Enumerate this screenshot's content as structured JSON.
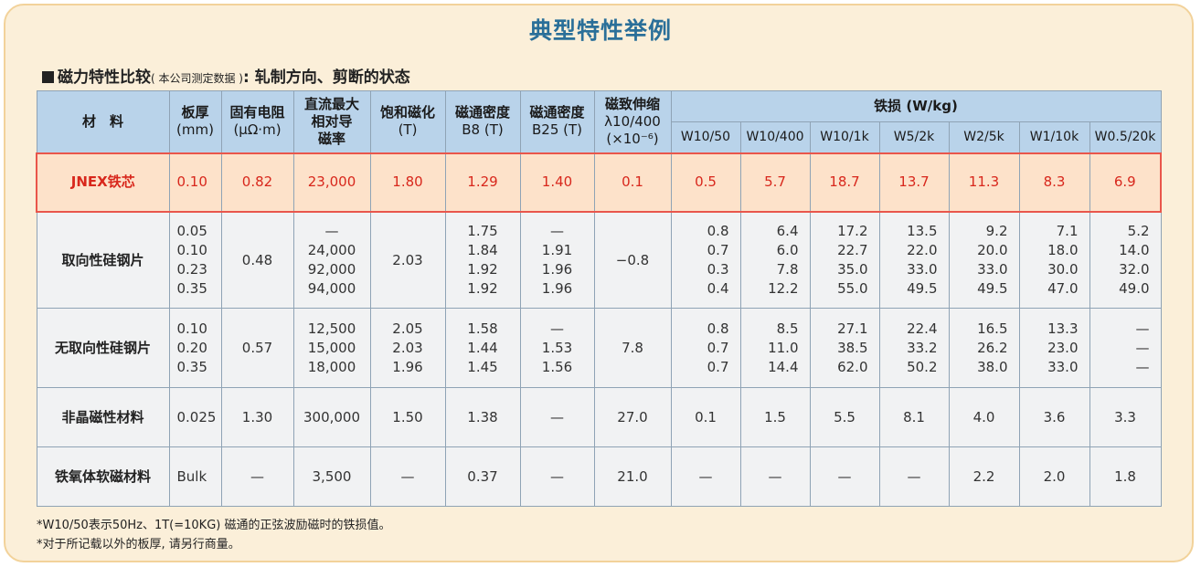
{
  "title": "典型特性举例",
  "subtitle": {
    "main": "磁力特性比较",
    "paren": "( 本公司测定数据 )",
    "rest": ": 轧制方向、剪断的状态"
  },
  "headers": {
    "material": "材　料",
    "thickness": [
      "板厚",
      "(mm)"
    ],
    "resistivity": [
      "固有电阻",
      "(μΩ·m)"
    ],
    "permeability": [
      "直流最大",
      "相对导",
      "磁率"
    ],
    "saturation": [
      "饱和磁化",
      "(T)"
    ],
    "b8": [
      "磁通密度",
      "B8 (T)"
    ],
    "b25": [
      "磁通密度",
      "B25 (T)"
    ],
    "magnetostriction": [
      "磁致伸缩",
      "λ10/400",
      "(×10⁻⁶)"
    ],
    "iron_loss": "铁损 (W/kg)",
    "iron_loss_cols": [
      "W10/50",
      "W10/400",
      "W10/1k",
      "W5/2k",
      "W2/5k",
      "W1/10k",
      "W0.5/20k"
    ]
  },
  "rows": [
    {
      "name": "JNEX铁芯",
      "thickness": [
        "0.10"
      ],
      "resistivity": "0.82",
      "permeability": [
        "23,000"
      ],
      "saturation": [
        "1.80"
      ],
      "b8": [
        "1.29"
      ],
      "b25": [
        "1.40"
      ],
      "magnetostriction": "0.1",
      "loss": [
        [
          "0.5"
        ],
        [
          "5.7"
        ],
        [
          "18.7"
        ],
        [
          "13.7"
        ],
        [
          "11.3"
        ],
        [
          "8.3"
        ],
        [
          "6.9"
        ]
      ]
    },
    {
      "name": "取向性硅钢片",
      "thickness": [
        "0.05",
        "0.10",
        "0.23",
        "0.35"
      ],
      "resistivity": "0.48",
      "permeability": [
        "—",
        "24,000",
        "92,000",
        "94,000"
      ],
      "saturation": [
        "2.03"
      ],
      "b8": [
        "1.75",
        "1.84",
        "1.92",
        "1.92"
      ],
      "b25": [
        "—",
        "1.91",
        "1.96",
        "1.96"
      ],
      "magnetostriction": "−0.8",
      "loss": [
        [
          "0.8",
          "0.7",
          "0.3",
          "0.4"
        ],
        [
          "6.4",
          "6.0",
          "7.8",
          "12.2"
        ],
        [
          "17.2",
          "22.7",
          "35.0",
          "55.0"
        ],
        [
          "13.5",
          "22.0",
          "33.0",
          "49.5"
        ],
        [
          "9.2",
          "20.0",
          "33.0",
          "49.5"
        ],
        [
          "7.1",
          "18.0",
          "30.0",
          "47.0"
        ],
        [
          "5.2",
          "14.0",
          "32.0",
          "49.0"
        ]
      ]
    },
    {
      "name": "无取向性硅钢片",
      "thickness": [
        "0.10",
        "0.20",
        "0.35"
      ],
      "resistivity": "0.57",
      "permeability": [
        "12,500",
        "15,000",
        "18,000"
      ],
      "saturation": [
        "2.05",
        "2.03",
        "1.96"
      ],
      "b8": [
        "1.58",
        "1.44",
        "1.45"
      ],
      "b25": [
        "—",
        "1.53",
        "1.56"
      ],
      "magnetostriction": "7.8",
      "loss": [
        [
          "0.8",
          "0.7",
          "0.7"
        ],
        [
          "8.5",
          "11.0",
          "14.4"
        ],
        [
          "27.1",
          "38.5",
          "62.0"
        ],
        [
          "22.4",
          "33.2",
          "50.2"
        ],
        [
          "16.5",
          "26.2",
          "38.0"
        ],
        [
          "13.3",
          "23.0",
          "33.0"
        ],
        [
          "—",
          "—",
          "—"
        ]
      ]
    },
    {
      "name": "非晶磁性材料",
      "thickness": [
        "0.025"
      ],
      "resistivity": "1.30",
      "permeability": [
        "300,000"
      ],
      "saturation": [
        "1.50"
      ],
      "b8": [
        "1.38"
      ],
      "b25": [
        "—"
      ],
      "magnetostriction": "27.0",
      "loss": [
        [
          "0.1"
        ],
        [
          "1.5"
        ],
        [
          "5.5"
        ],
        [
          "8.1"
        ],
        [
          "4.0"
        ],
        [
          "3.6"
        ],
        [
          "3.3"
        ]
      ]
    },
    {
      "name": "铁氧体软磁材料",
      "thickness": [
        "Bulk"
      ],
      "resistivity": "—",
      "permeability": [
        "3,500"
      ],
      "saturation": [
        "—"
      ],
      "b8": [
        "0.37"
      ],
      "b25": [
        "—"
      ],
      "magnetostriction": "21.0",
      "loss": [
        [
          "—"
        ],
        [
          "—"
        ],
        [
          "—"
        ],
        [
          "—"
        ],
        [
          "2.2"
        ],
        [
          "2.0"
        ],
        [
          "1.8"
        ]
      ]
    }
  ],
  "notes": [
    "*W10/50表示50Hz、1T(=10KG) 磁通的正弦波励磁时的铁损值。",
    "*对于所记载以外的板厚, 请另行商量。"
  ]
}
